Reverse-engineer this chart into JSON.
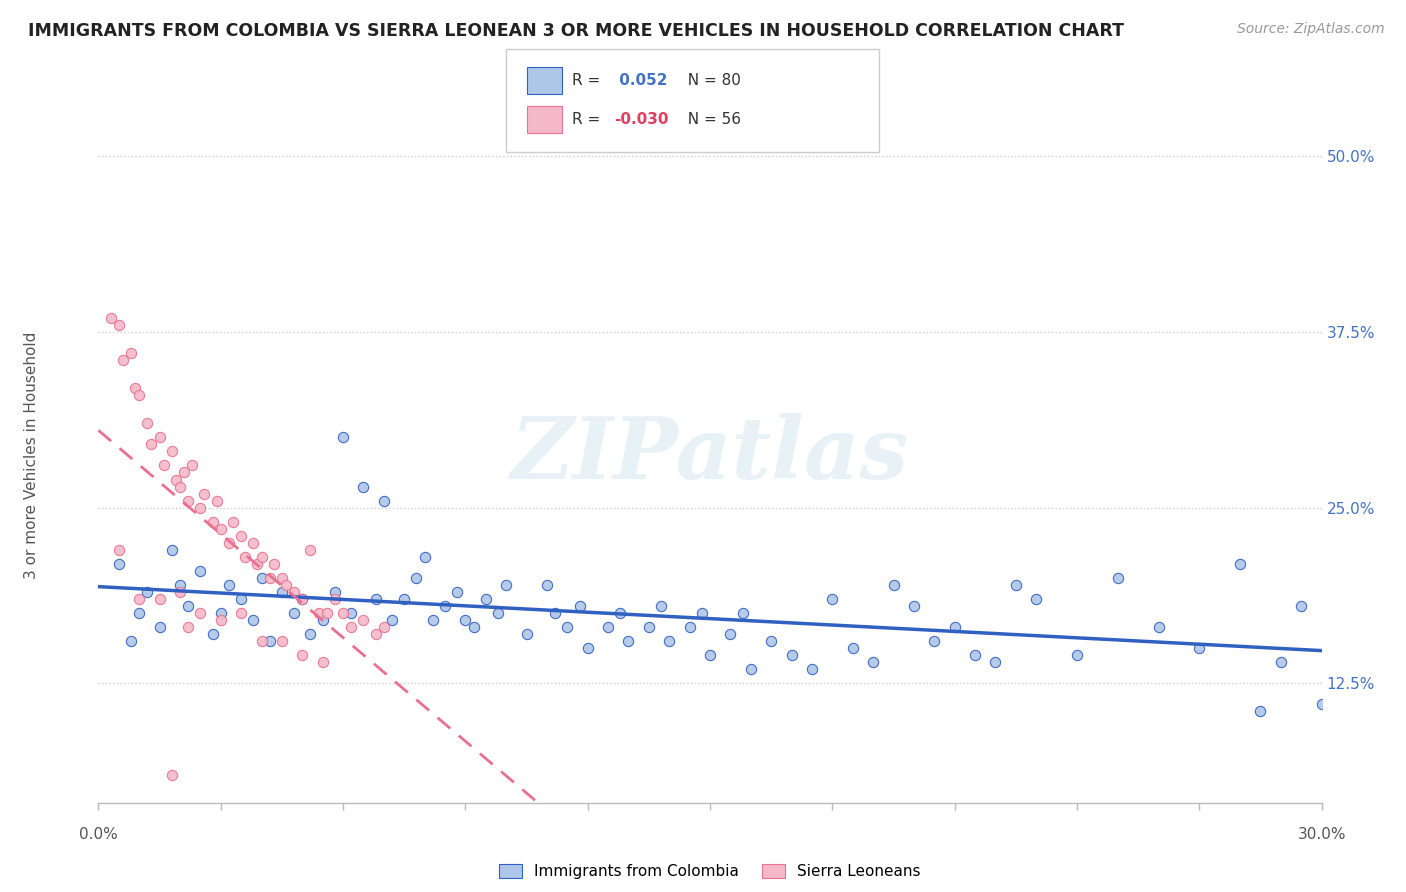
{
  "title": "IMMIGRANTS FROM COLOMBIA VS SIERRA LEONEAN 3 OR MORE VEHICLES IN HOUSEHOLD CORRELATION CHART",
  "source": "Source: ZipAtlas.com",
  "ylabel": "3 or more Vehicles in Household",
  "ytick_labels": [
    "12.5%",
    "25.0%",
    "37.5%",
    "50.0%"
  ],
  "ytick_values": [
    0.125,
    0.25,
    0.375,
    0.5
  ],
  "xmin": 0.0,
  "xmax": 0.3,
  "ymin": 0.04,
  "ymax": 0.535,
  "legend_blue_label": "Immigrants from Colombia",
  "legend_pink_label": "Sierra Leoneans",
  "R_blue": 0.052,
  "N_blue": 80,
  "R_pink": -0.03,
  "N_pink": 56,
  "blue_color": "#aec6e8",
  "pink_color": "#f5b8c8",
  "blue_line_color": "#3060c0",
  "pink_line_color": "#e87090",
  "watermark": "ZIPatlas",
  "blue_scatter_x": [
    0.005,
    0.008,
    0.01,
    0.012,
    0.015,
    0.018,
    0.02,
    0.022,
    0.025,
    0.028,
    0.03,
    0.032,
    0.035,
    0.038,
    0.04,
    0.042,
    0.045,
    0.048,
    0.05,
    0.052,
    0.055,
    0.058,
    0.06,
    0.062,
    0.065,
    0.068,
    0.07,
    0.072,
    0.075,
    0.078,
    0.08,
    0.082,
    0.085,
    0.088,
    0.09,
    0.092,
    0.095,
    0.098,
    0.1,
    0.105,
    0.11,
    0.112,
    0.115,
    0.118,
    0.12,
    0.125,
    0.128,
    0.13,
    0.135,
    0.138,
    0.14,
    0.145,
    0.148,
    0.15,
    0.155,
    0.158,
    0.16,
    0.165,
    0.17,
    0.175,
    0.18,
    0.185,
    0.19,
    0.195,
    0.2,
    0.205,
    0.21,
    0.215,
    0.22,
    0.225,
    0.23,
    0.24,
    0.25,
    0.26,
    0.27,
    0.28,
    0.285,
    0.29,
    0.295,
    0.3
  ],
  "blue_scatter_y": [
    0.21,
    0.155,
    0.175,
    0.19,
    0.165,
    0.22,
    0.195,
    0.18,
    0.205,
    0.16,
    0.175,
    0.195,
    0.185,
    0.17,
    0.2,
    0.155,
    0.19,
    0.175,
    0.185,
    0.16,
    0.17,
    0.19,
    0.3,
    0.175,
    0.265,
    0.185,
    0.255,
    0.17,
    0.185,
    0.2,
    0.215,
    0.17,
    0.18,
    0.19,
    0.17,
    0.165,
    0.185,
    0.175,
    0.195,
    0.16,
    0.195,
    0.175,
    0.165,
    0.18,
    0.15,
    0.165,
    0.175,
    0.155,
    0.165,
    0.18,
    0.155,
    0.165,
    0.175,
    0.145,
    0.16,
    0.175,
    0.135,
    0.155,
    0.145,
    0.135,
    0.185,
    0.15,
    0.14,
    0.195,
    0.18,
    0.155,
    0.165,
    0.145,
    0.14,
    0.195,
    0.185,
    0.145,
    0.2,
    0.165,
    0.15,
    0.21,
    0.105,
    0.14,
    0.18,
    0.11
  ],
  "pink_scatter_x": [
    0.003,
    0.005,
    0.006,
    0.008,
    0.009,
    0.01,
    0.012,
    0.013,
    0.015,
    0.016,
    0.018,
    0.019,
    0.02,
    0.021,
    0.022,
    0.023,
    0.025,
    0.026,
    0.028,
    0.029,
    0.03,
    0.032,
    0.033,
    0.035,
    0.036,
    0.038,
    0.039,
    0.04,
    0.042,
    0.043,
    0.045,
    0.046,
    0.048,
    0.05,
    0.052,
    0.054,
    0.056,
    0.058,
    0.06,
    0.062,
    0.065,
    0.068,
    0.07,
    0.005,
    0.01,
    0.015,
    0.02,
    0.025,
    0.03,
    0.035,
    0.04,
    0.045,
    0.05,
    0.055,
    0.022,
    0.018
  ],
  "pink_scatter_y": [
    0.385,
    0.38,
    0.355,
    0.36,
    0.335,
    0.33,
    0.31,
    0.295,
    0.3,
    0.28,
    0.29,
    0.27,
    0.265,
    0.275,
    0.255,
    0.28,
    0.25,
    0.26,
    0.24,
    0.255,
    0.235,
    0.225,
    0.24,
    0.23,
    0.215,
    0.225,
    0.21,
    0.215,
    0.2,
    0.21,
    0.2,
    0.195,
    0.19,
    0.185,
    0.22,
    0.175,
    0.175,
    0.185,
    0.175,
    0.165,
    0.17,
    0.16,
    0.165,
    0.22,
    0.185,
    0.185,
    0.19,
    0.175,
    0.17,
    0.175,
    0.155,
    0.155,
    0.145,
    0.14,
    0.165,
    0.06
  ]
}
